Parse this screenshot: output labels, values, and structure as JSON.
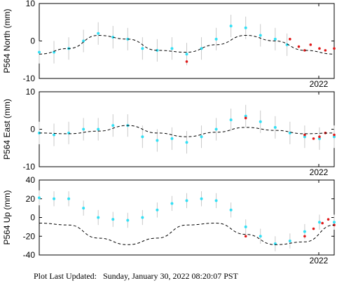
{
  "footer": {
    "label": "Plot Last Updated:",
    "datetime": "Sunday, January 30, 2022 08:20:07 PST"
  },
  "colors": {
    "points": "#33e0f5",
    "recent_points": "#e01818",
    "error_bars": "#c9c9c9",
    "model_line": "#000000"
  },
  "chart_data": [
    {
      "type": "scatter",
      "ylabel": "P564 North (mm)",
      "ylim": [
        -10,
        10
      ],
      "yticks": [
        -10,
        0,
        10
      ],
      "xtick_labels": [
        "2022"
      ],
      "model": {
        "x": [
          0.0,
          0.1,
          0.2,
          0.3,
          0.4,
          0.5,
          0.6,
          0.7,
          0.8,
          0.9,
          1.0
        ],
        "y": [
          -3.5,
          -2.0,
          1.5,
          0.5,
          -2.5,
          -3.0,
          -1.0,
          1.5,
          0.0,
          -2.5,
          -3.5
        ]
      },
      "series": [
        {
          "x": [
            0.0,
            0.05,
            0.1,
            0.15,
            0.2,
            0.25,
            0.3,
            0.35,
            0.4,
            0.45,
            0.5,
            0.55,
            0.6,
            0.65,
            0.7,
            0.75,
            0.8,
            0.84
          ],
          "y": [
            -3.0,
            -3.0,
            -2.0,
            0.0,
            2.0,
            1.0,
            0.5,
            -2.0,
            -2.5,
            -2.0,
            -3.5,
            -2.0,
            0.5,
            4.0,
            3.5,
            1.5,
            0.5,
            -1.0
          ],
          "error": 3
        },
        {
          "x": [
            0.5,
            0.85,
            0.88,
            0.9,
            0.92,
            0.95,
            0.97,
            1.0
          ],
          "y": [
            -5.5,
            0.5,
            -1.5,
            -2.5,
            -1.0,
            -2.0,
            -2.5,
            -2.0
          ]
        }
      ]
    },
    {
      "type": "scatter",
      "ylabel": "P564 East (mm)",
      "ylim": [
        -10,
        10
      ],
      "yticks": [
        -10,
        0,
        10
      ],
      "xtick_labels": [
        "2022"
      ],
      "model": {
        "x": [
          0.0,
          0.1,
          0.2,
          0.3,
          0.4,
          0.5,
          0.6,
          0.7,
          0.8,
          0.9,
          1.0
        ],
        "y": [
          -1.0,
          -1.2,
          -0.5,
          1.0,
          -1.0,
          -2.0,
          -0.8,
          0.5,
          -0.3,
          -1.2,
          -1.0
        ]
      },
      "series": [
        {
          "x": [
            0.0,
            0.05,
            0.1,
            0.15,
            0.2,
            0.25,
            0.3,
            0.35,
            0.4,
            0.45,
            0.5,
            0.55,
            0.6,
            0.65,
            0.7,
            0.75,
            0.8,
            0.85,
            0.9,
            0.95,
            1.0
          ],
          "y": [
            -1.0,
            -1.5,
            -1.0,
            0.0,
            0.0,
            1.0,
            1.0,
            -2.0,
            -3.0,
            -2.5,
            -3.5,
            -2.0,
            0.0,
            2.5,
            3.5,
            2.0,
            0.5,
            -1.0,
            -2.0,
            -2.5,
            -2.0
          ],
          "error": 3
        },
        {
          "x": [
            0.7,
            0.9,
            0.93,
            0.95,
            0.97,
            1.0
          ],
          "y": [
            3.0,
            -1.5,
            -2.5,
            -2.0,
            -1.0,
            -1.5
          ]
        }
      ]
    },
    {
      "type": "scatter",
      "ylabel": "P564 Up (mm)",
      "ylim": [
        -40,
        40
      ],
      "yticks": [
        -40,
        -20,
        0,
        20,
        40
      ],
      "xtick_labels": [
        "2022"
      ],
      "model": {
        "x": [
          0.0,
          0.1,
          0.2,
          0.3,
          0.4,
          0.5,
          0.6,
          0.7,
          0.8,
          0.9,
          1.0
        ],
        "y": [
          -6,
          -8,
          -22,
          -29,
          -22,
          -8,
          -6,
          -18,
          -29,
          -26,
          -8
        ]
      },
      "series": [
        {
          "x": [
            0.0,
            0.05,
            0.1,
            0.15,
            0.2,
            0.25,
            0.3,
            0.35,
            0.4,
            0.45,
            0.5,
            0.55,
            0.6,
            0.65,
            0.7,
            0.75,
            0.8,
            0.85,
            0.9,
            0.95,
            1.0
          ],
          "y": [
            21,
            20,
            20,
            10,
            0,
            -2,
            -3,
            0,
            8,
            15,
            18,
            20,
            18,
            8,
            -10,
            -20,
            -28,
            -25,
            -15,
            -5,
            -5
          ],
          "error": 8
        },
        {
          "x": [
            0.7,
            0.9,
            0.93,
            0.96,
            0.98,
            1.0
          ],
          "y": [
            -20,
            -20,
            -12,
            -6,
            -2,
            -8
          ]
        }
      ]
    }
  ]
}
